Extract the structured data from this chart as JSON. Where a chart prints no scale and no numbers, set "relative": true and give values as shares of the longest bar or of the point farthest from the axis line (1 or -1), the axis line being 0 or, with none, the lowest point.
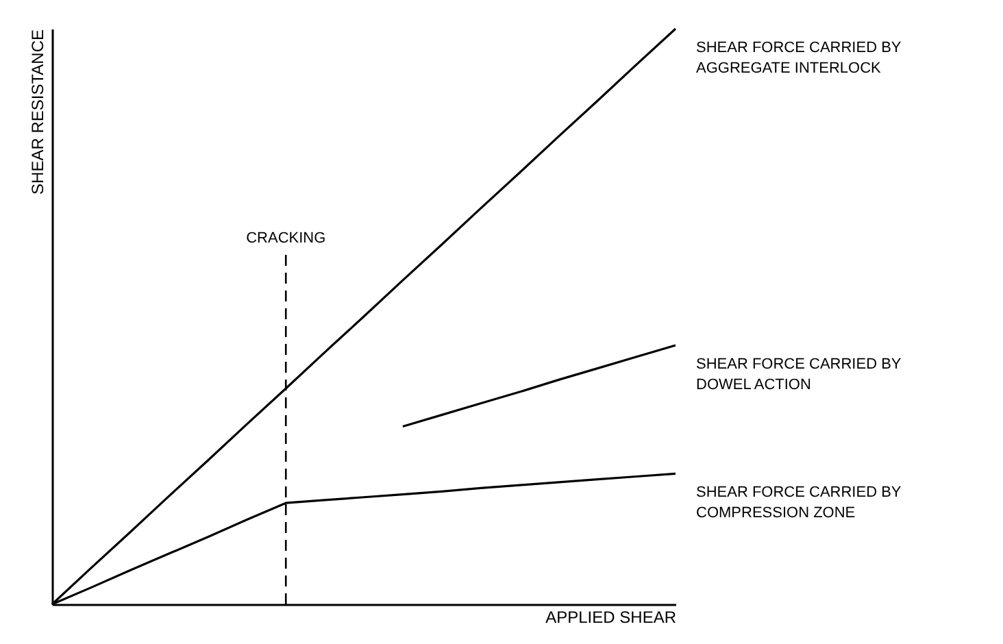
{
  "chart_data": {
    "type": "line",
    "relative": true,
    "xlabel": "APPLIED SHEAR",
    "ylabel": "SHEAR RESISTANCE",
    "categories": [
      null,
      null,
      null,
      null,
      null,
      null,
      null,
      null,
      null,
      null,
      null,
      null,
      null,
      null,
      null,
      null,
      null
    ],
    "series": [
      {
        "name": "SHEAR FORCE CARRIED BY AGGREGATE INTERLOCK",
        "color": "#000000",
        "values": [
          0,
          0.063,
          0.125,
          0.188,
          0.25,
          0.313,
          0.375,
          0.438,
          0.5,
          0.563,
          0.625,
          0.688,
          0.75,
          0.813,
          0.875,
          0.938,
          1
        ]
      },
      {
        "name": "SHEAR FORCE CARRIED BY DOWEL ACTION",
        "color": "#000000",
        "values": [
          null,
          null,
          null,
          null,
          null,
          null,
          null,
          null,
          null,
          0.309,
          0.329,
          0.349,
          0.369,
          0.39,
          0.41,
          0.43,
          0.45
        ]
      },
      {
        "name": "SHEAR FORCE CARRIED BY COMPRESSION ZONE",
        "color": "#000000",
        "values": [
          0,
          0.029,
          0.059,
          0.088,
          0.117,
          0.147,
          0.176,
          0.181,
          0.186,
          0.191,
          0.196,
          0.202,
          0.207,
          0.212,
          0.217,
          0.222,
          0.227
        ]
      }
    ],
    "annotations": [
      "CRACKING"
    ]
  }
}
